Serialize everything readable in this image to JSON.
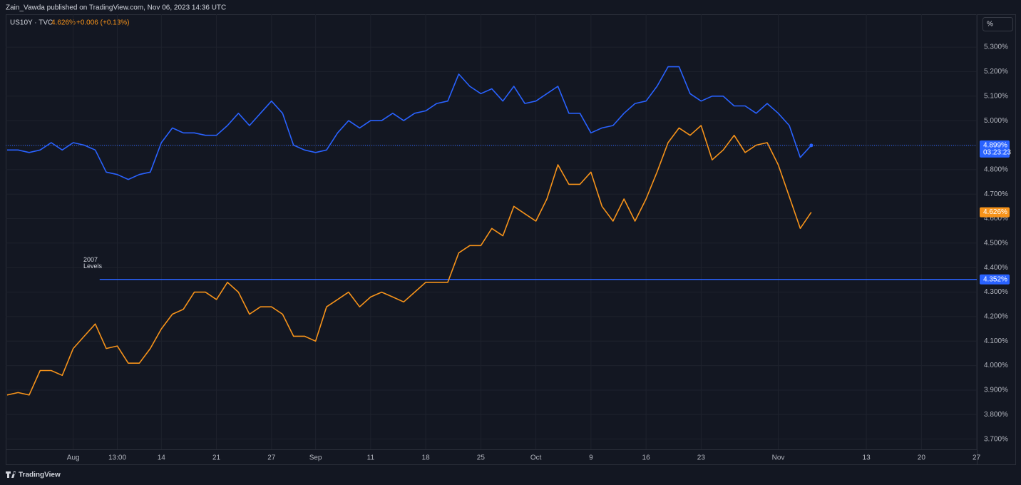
{
  "header": "Zain_Vawda published on TradingView.com, Nov 06, 2023 14:36 UTC",
  "footer": "TradingView",
  "chart_data": {
    "type": "line",
    "symbol": "US10Y · TVC",
    "legend_value": "4.626%",
    "legend_change": "+0.006 (+0.13%)",
    "unit_button": "%",
    "categories": [
      null,
      null,
      null,
      null,
      null,
      null,
      "Aug",
      null,
      null,
      null,
      "13:00",
      null,
      null,
      null,
      "14",
      null,
      null,
      null,
      null,
      "21",
      null,
      null,
      null,
      null,
      "27",
      null,
      null,
      null,
      "Sep",
      null,
      null,
      null,
      null,
      "11",
      null,
      null,
      null,
      null,
      "18",
      null,
      null,
      null,
      null,
      "25",
      null,
      null,
      null,
      null,
      "Oct",
      null,
      null,
      null,
      null,
      "9",
      null,
      null,
      null,
      null,
      "16",
      null,
      null,
      null,
      null,
      "23",
      null,
      null,
      null,
      null,
      null,
      null,
      "Nov",
      null,
      null,
      null,
      null,
      null,
      null,
      null,
      "13",
      null,
      null,
      null,
      null,
      "20",
      null,
      null,
      null,
      null,
      "27"
    ],
    "series": [
      {
        "name": "US10Y",
        "color": "#f7931a",
        "last_label": "4.626%",
        "values": [
          3.88,
          3.89,
          3.88,
          3.98,
          3.98,
          3.96,
          4.07,
          4.12,
          4.17,
          4.07,
          4.08,
          4.01,
          4.01,
          4.07,
          4.15,
          4.21,
          4.23,
          4.3,
          4.3,
          4.27,
          4.34,
          4.3,
          4.21,
          4.24,
          4.24,
          4.21,
          4.12,
          4.12,
          4.1,
          4.24,
          4.27,
          4.3,
          4.24,
          4.28,
          4.3,
          4.28,
          4.26,
          4.3,
          4.34,
          4.34,
          4.34,
          4.46,
          4.49,
          4.49,
          4.56,
          4.53,
          4.65,
          4.62,
          4.59,
          4.68,
          4.82,
          4.74,
          4.74,
          4.79,
          4.65,
          4.59,
          4.68,
          4.59,
          4.68,
          4.79,
          4.91,
          4.97,
          4.94,
          4.98,
          4.84,
          4.88,
          4.94,
          4.87,
          4.9,
          4.91,
          4.82,
          4.69,
          4.56,
          4.626,
          null,
          null,
          null,
          null,
          null,
          null,
          null,
          null,
          null,
          null,
          null,
          null,
          null,
          null,
          null
        ]
      },
      {
        "color": "#2962ff",
        "last_label": "4.899%",
        "countdown": "03:23:23",
        "values": [
          4.88,
          4.88,
          4.87,
          4.88,
          4.91,
          4.88,
          4.91,
          4.9,
          4.88,
          4.79,
          4.78,
          4.76,
          4.78,
          4.79,
          4.91,
          4.97,
          4.95,
          4.95,
          4.94,
          4.94,
          4.98,
          5.03,
          4.98,
          5.03,
          5.08,
          5.03,
          4.9,
          4.88,
          4.87,
          4.88,
          4.95,
          5.0,
          4.97,
          5.0,
          5.0,
          5.03,
          5.0,
          5.03,
          5.04,
          5.07,
          5.08,
          5.19,
          5.14,
          5.11,
          5.13,
          5.08,
          5.14,
          5.07,
          5.08,
          5.11,
          5.14,
          5.03,
          5.03,
          4.95,
          4.97,
          4.98,
          5.03,
          5.07,
          5.08,
          5.14,
          5.22,
          5.22,
          5.11,
          5.08,
          5.1,
          5.1,
          5.06,
          5.06,
          5.03,
          5.07,
          5.03,
          4.98,
          4.85,
          4.899,
          null,
          null,
          null,
          null,
          null,
          null,
          null,
          null,
          null,
          null,
          null,
          null,
          null,
          null,
          null
        ]
      }
    ],
    "ylim": [
      3.6,
      5.44
    ],
    "yticks": [
      {
        "value": 3.7,
        "label": "3.700%"
      },
      {
        "value": 3.8,
        "label": "3.800%"
      },
      {
        "value": 3.9,
        "label": "3.900%"
      },
      {
        "value": 4.0,
        "label": "4.000%"
      },
      {
        "value": 4.1,
        "label": "4.100%"
      },
      {
        "value": 4.2,
        "label": "4.200%"
      },
      {
        "value": 4.3,
        "label": "4.300%"
      },
      {
        "value": 4.4,
        "label": "4.400%"
      },
      {
        "value": 4.5,
        "label": "4.500%"
      },
      {
        "value": 4.6,
        "label": "4.600%"
      },
      {
        "value": 4.7,
        "label": "4.700%"
      },
      {
        "value": 4.8,
        "label": "4.800%"
      },
      {
        "value": 4.9,
        "label": "4.900%"
      },
      {
        "value": 5.0,
        "label": "5.000%"
      },
      {
        "value": 5.1,
        "label": "5.100%"
      },
      {
        "value": 5.2,
        "label": "5.200%"
      },
      {
        "value": 5.3,
        "label": "5.300%"
      }
    ],
    "grid": true,
    "hline": {
      "value": 4.352,
      "label": "4.352%",
      "color": "#2962ff"
    },
    "annotation": [
      "2007",
      "Levels"
    ]
  }
}
